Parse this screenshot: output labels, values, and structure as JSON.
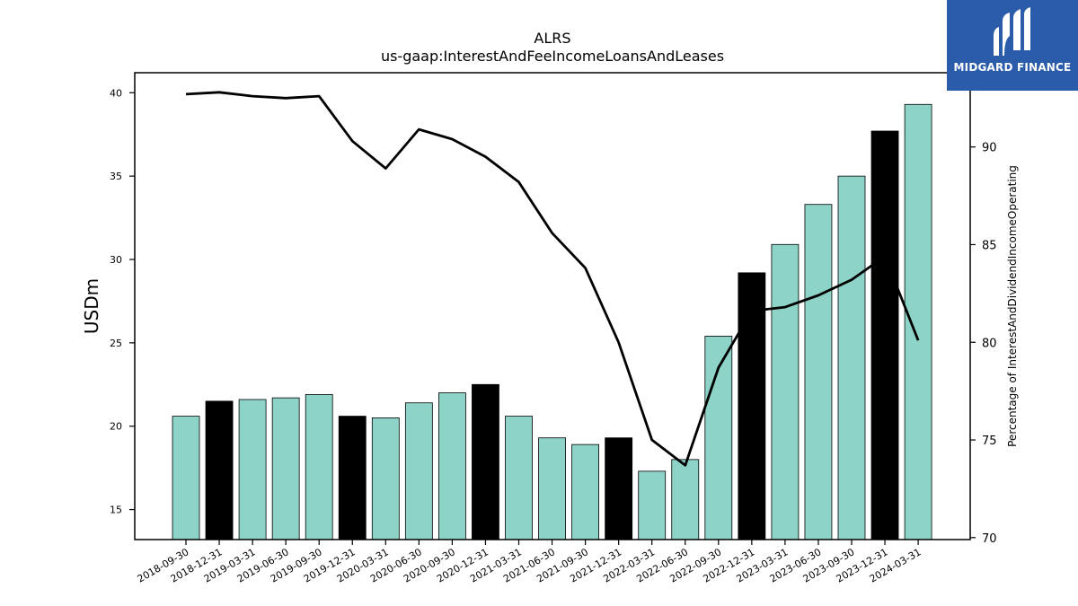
{
  "chart_data": {
    "type": "bar",
    "title": "ALRS",
    "subtitle": "us-gaap:InterestAndFeeIncomeLoansAndLeases",
    "ylabel": "USDm",
    "y2label": "Percentage of InterestAndDividendIncomeOperating",
    "ylim": [
      13.2,
      41.2
    ],
    "y2lim": [
      69.9,
      93.8
    ],
    "yticks": [
      15,
      20,
      25,
      30,
      35,
      40
    ],
    "y2ticks": [
      70,
      75,
      80,
      85,
      90
    ],
    "categories": [
      "2018-09-30",
      "2018-12-31",
      "2019-03-31",
      "2019-06-30",
      "2019-09-30",
      "2019-12-31",
      "2020-03-31",
      "2020-06-30",
      "2020-09-30",
      "2020-12-31",
      "2021-03-31",
      "2021-06-30",
      "2021-09-30",
      "2021-12-31",
      "2022-03-31",
      "2022-06-30",
      "2022-09-30",
      "2022-12-31",
      "2023-03-31",
      "2023-06-30",
      "2023-09-30",
      "2023-12-31",
      "2024-03-31"
    ],
    "series": [
      {
        "kind": "bar",
        "axis": "left",
        "values": [
          20.6,
          21.5,
          21.6,
          21.7,
          21.9,
          20.6,
          20.5,
          21.4,
          22.0,
          22.5,
          20.6,
          19.3,
          18.9,
          19.3,
          17.3,
          18.0,
          25.4,
          29.2,
          30.9,
          33.3,
          35.0,
          37.7,
          39.3
        ],
        "highlight": [
          false,
          true,
          false,
          false,
          false,
          true,
          false,
          false,
          false,
          true,
          false,
          false,
          false,
          true,
          false,
          false,
          false,
          true,
          false,
          false,
          false,
          true,
          false
        ]
      },
      {
        "kind": "line",
        "axis": "right",
        "values": [
          92.7,
          92.8,
          92.6,
          92.5,
          92.6,
          90.3,
          88.9,
          90.9,
          90.4,
          89.5,
          88.2,
          85.6,
          83.8,
          80.0,
          75.0,
          73.7,
          78.7,
          81.6,
          81.8,
          82.4,
          83.2,
          84.4,
          80.1
        ]
      }
    ],
    "colors": {
      "bar": "#8dd3c7",
      "highlight": "#000000",
      "line": "#000000"
    },
    "grid": false,
    "legend": "none"
  },
  "logo": {
    "text": "MIDGARD FINANCE"
  }
}
